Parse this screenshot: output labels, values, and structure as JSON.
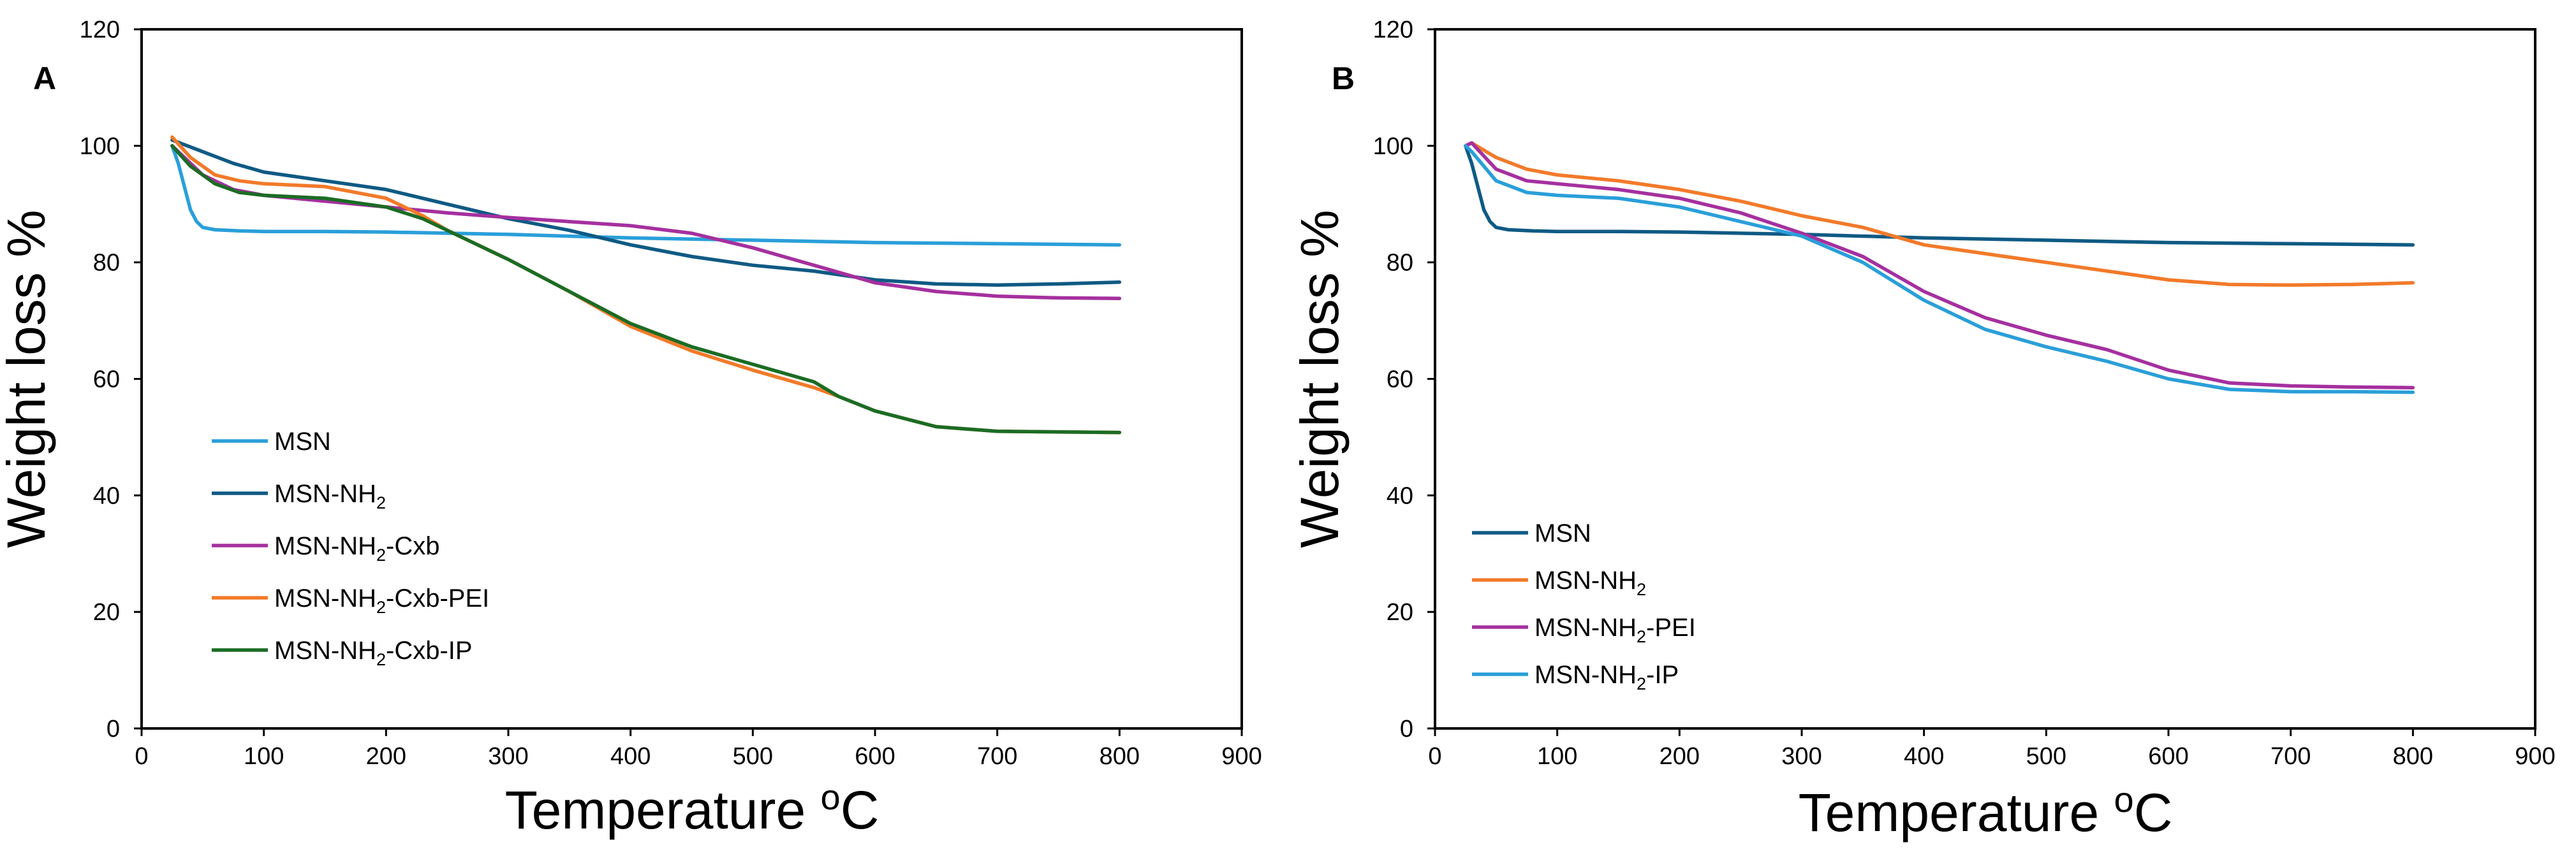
{
  "colors": {
    "light_blue": "#2a9fd9",
    "dark_blue": "#0f5a84",
    "magenta": "#a5309f",
    "orange": "#f27a2a",
    "green": "#1b6c24"
  },
  "chart_data": [
    {
      "panel": "A",
      "type": "line",
      "xlabel": "Temperature",
      "xlabel_sup": "o",
      "xlabel_unit": "C",
      "ylabel": "Weight loss %",
      "xlim": [
        0,
        900
      ],
      "ylim": [
        0,
        120
      ],
      "x_ticks": [
        0,
        100,
        200,
        300,
        400,
        500,
        600,
        700,
        800,
        900
      ],
      "y_ticks": [
        0,
        20,
        40,
        60,
        80,
        100,
        120
      ],
      "series": [
        {
          "name": "MSN",
          "name_sub": "",
          "name_suffix": "",
          "color": "#2a9fd9",
          "x": [
            25,
            30,
            35,
            40,
            45,
            50,
            60,
            80,
            100,
            150,
            200,
            300,
            400,
            500,
            600,
            700,
            800
          ],
          "y": [
            100,
            97,
            93,
            89,
            87,
            86,
            85.6,
            85.4,
            85.3,
            85.3,
            85.2,
            84.8,
            84.2,
            83.8,
            83.4,
            83.2,
            83
          ]
        },
        {
          "name": "MSN-NH",
          "name_sub": "2",
          "name_suffix": "",
          "color": "#0f5a84",
          "x": [
            25,
            50,
            75,
            100,
            150,
            200,
            250,
            300,
            350,
            400,
            450,
            500,
            550,
            600,
            650,
            700,
            750,
            800
          ],
          "y": [
            101,
            99,
            97,
            95.5,
            94,
            92.5,
            90,
            87.5,
            85.5,
            83,
            81,
            79.5,
            78.5,
            77,
            76.3,
            76.1,
            76.3,
            76.6
          ]
        },
        {
          "name": "MSN-NH",
          "name_sub": "2",
          "name_suffix": "-Cxb",
          "color": "#a5309f",
          "x": [
            25,
            50,
            75,
            100,
            150,
            200,
            250,
            300,
            350,
            400,
            450,
            500,
            550,
            600,
            650,
            700,
            750,
            800
          ],
          "y": [
            100,
            95,
            92.5,
            91.5,
            90.5,
            89.5,
            88.5,
            87.7,
            87,
            86.3,
            85,
            82.5,
            79.5,
            76.5,
            75,
            74.2,
            73.9,
            73.8
          ]
        },
        {
          "name": "MSN-NH",
          "name_sub": "2",
          "name_suffix": "-Cxb-PEI",
          "color": "#f27a2a",
          "x": [
            25,
            40,
            60,
            80,
            100,
            150,
            200,
            230,
            250,
            300,
            350,
            400,
            450,
            500,
            550,
            570,
            600,
            650,
            700,
            750,
            800
          ],
          "y": [
            101.5,
            98,
            95,
            94,
            93.5,
            93,
            91,
            88,
            85.5,
            80.5,
            75,
            69,
            64.8,
            61.5,
            58.5,
            57,
            54.5,
            51.8,
            51,
            50.9,
            50.8
          ]
        },
        {
          "name": "MSN-NH",
          "name_sub": "2",
          "name_suffix": "-Cxb-IP",
          "color": "#1b6c24",
          "x": [
            25,
            40,
            60,
            80,
            100,
            150,
            200,
            230,
            250,
            300,
            350,
            400,
            450,
            500,
            550,
            570,
            600,
            650,
            700,
            750,
            800
          ],
          "y": [
            100,
            96.5,
            93.5,
            92,
            91.5,
            91,
            89.5,
            87.5,
            85.5,
            80.5,
            75,
            69.5,
            65.5,
            62.5,
            59.5,
            57,
            54.5,
            51.8,
            51,
            50.9,
            50.8
          ]
        }
      ]
    },
    {
      "panel": "B",
      "type": "line",
      "xlabel": "Temperature",
      "xlabel_sup": "o",
      "xlabel_unit": "C",
      "ylabel": "Weight loss %",
      "xlim": [
        0,
        900
      ],
      "ylim": [
        0,
        120
      ],
      "x_ticks": [
        0,
        100,
        200,
        300,
        400,
        500,
        600,
        700,
        800,
        900
      ],
      "y_ticks": [
        0,
        20,
        40,
        60,
        80,
        100,
        120
      ],
      "series": [
        {
          "name": "MSN",
          "name_sub": "",
          "name_suffix": "",
          "color": "#0f5a84",
          "x": [
            25,
            30,
            35,
            40,
            45,
            50,
            60,
            80,
            100,
            150,
            200,
            300,
            400,
            500,
            600,
            700,
            800
          ],
          "y": [
            100,
            97,
            93,
            89,
            87,
            86,
            85.6,
            85.4,
            85.3,
            85.3,
            85.2,
            84.8,
            84.2,
            83.8,
            83.4,
            83.2,
            83
          ]
        },
        {
          "name": "MSN-NH",
          "name_sub": "2",
          "name_suffix": "",
          "color": "#f27a2a",
          "x": [
            25,
            30,
            50,
            75,
            100,
            150,
            200,
            250,
            300,
            350,
            400,
            450,
            500,
            550,
            600,
            650,
            700,
            750,
            800
          ],
          "y": [
            100,
            100.5,
            98,
            96,
            95,
            94,
            92.5,
            90.5,
            88,
            86,
            83,
            81.5,
            80,
            78.5,
            77,
            76.2,
            76.1,
            76.2,
            76.5
          ]
        },
        {
          "name": "MSN-NH",
          "name_sub": "2",
          "name_suffix": "-PEI",
          "color": "#a5309f",
          "x": [
            25,
            30,
            50,
            75,
            100,
            150,
            200,
            250,
            300,
            350,
            400,
            450,
            500,
            550,
            600,
            650,
            700,
            750,
            800
          ],
          "y": [
            100,
            100.5,
            96,
            94,
            93.5,
            92.5,
            91,
            88.5,
            85,
            81,
            75,
            70.5,
            67.5,
            65,
            61.5,
            59.3,
            58.8,
            58.6,
            58.5
          ]
        },
        {
          "name": "MSN-NH",
          "name_sub": "2",
          "name_suffix": "-IP",
          "color": "#2a9fd9",
          "x": [
            25,
            30,
            50,
            75,
            100,
            150,
            200,
            250,
            300,
            350,
            400,
            450,
            500,
            550,
            600,
            650,
            700,
            750,
            800
          ],
          "y": [
            100,
            99,
            94,
            92,
            91.5,
            91,
            89.5,
            87,
            84.5,
            80,
            73.5,
            68.5,
            65.5,
            63,
            60,
            58.2,
            57.8,
            57.8,
            57.7
          ]
        }
      ]
    }
  ]
}
